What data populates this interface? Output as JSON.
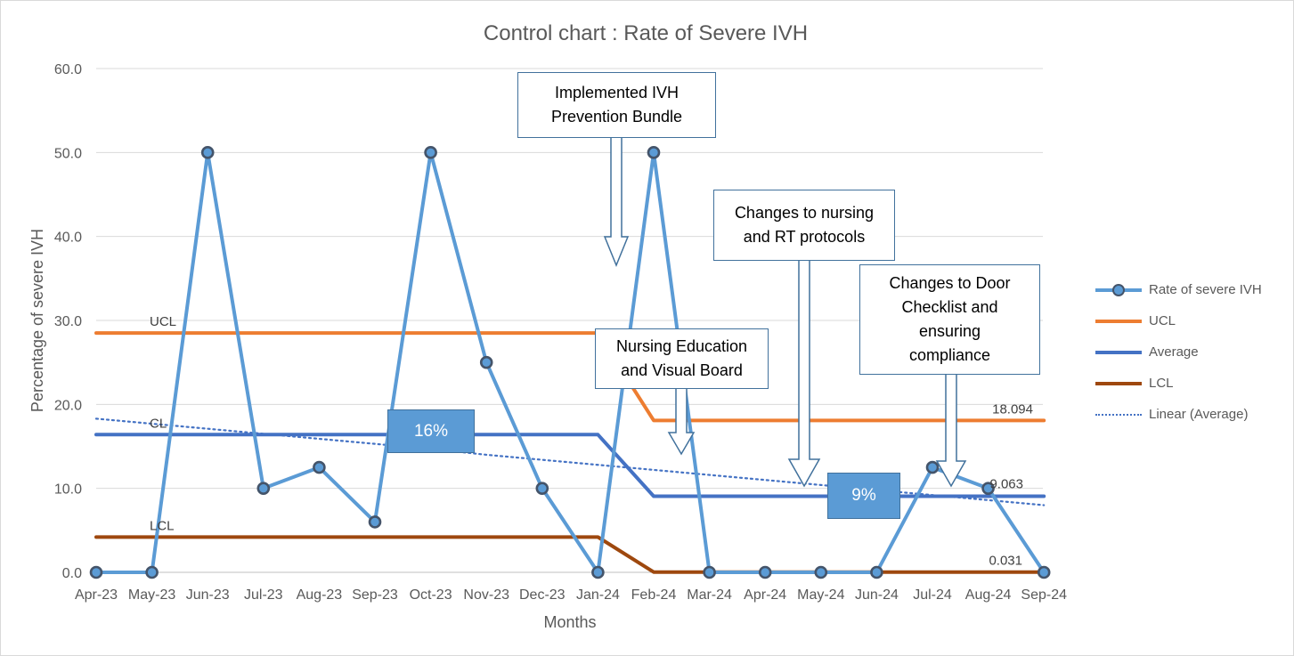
{
  "chart_data": {
    "type": "line",
    "title": "Control chart : Rate of Severe IVH",
    "xlabel": "Months",
    "ylabel": "Percentage of severe  IVH",
    "ylim": [
      0,
      60
    ],
    "yticks": [
      "0.0",
      "10.0",
      "20.0",
      "30.0",
      "40.0",
      "50.0",
      "60.0"
    ],
    "grid": true,
    "legend_position": "right",
    "categories": [
      "Apr-23",
      "May-23",
      "Jun-23",
      "Jul-23",
      "Aug-23",
      "Sep-23",
      "Oct-23",
      "Nov-23",
      "Dec-23",
      "Jan-24",
      "Feb-24",
      "Mar-24",
      "Apr-24",
      "May-24",
      "Jun-24",
      "Jul-24",
      "Aug-24",
      "Sep-24"
    ],
    "series": [
      {
        "name": "Rate of severe IVH",
        "color": "#5b9bd5",
        "values": [
          0,
          0,
          50,
          10,
          12.5,
          6,
          50,
          25,
          10,
          0,
          50,
          0,
          0,
          0,
          0,
          12.5,
          10,
          0
        ]
      },
      {
        "name": "UCL",
        "color": "#ed7d31",
        "values": [
          28.5,
          28.5,
          28.5,
          28.5,
          28.5,
          28.5,
          28.5,
          28.5,
          28.5,
          28.5,
          18.094,
          18.094,
          18.094,
          18.094,
          18.094,
          18.094,
          18.094,
          18.094
        ]
      },
      {
        "name": "Average",
        "color": "#4472c4",
        "values": [
          16.4,
          16.4,
          16.4,
          16.4,
          16.4,
          16.4,
          16.4,
          16.4,
          16.4,
          16.4,
          9.063,
          9.063,
          9.063,
          9.063,
          9.063,
          9.063,
          9.063,
          9.063
        ]
      },
      {
        "name": "LCL",
        "color": "#9e480e",
        "values": [
          4.2,
          4.2,
          4.2,
          4.2,
          4.2,
          4.2,
          4.2,
          4.2,
          4.2,
          4.2,
          0.031,
          0.031,
          0.031,
          0.031,
          0.031,
          0.031,
          0.031,
          0.031
        ]
      },
      {
        "name": "Linear (Average)",
        "color": "#4472c4",
        "values": [
          18.3,
          17.7,
          17.1,
          16.5,
          15.9,
          15.3,
          14.7,
          14.0,
          13.4,
          12.8,
          12.2,
          11.6,
          11.0,
          10.4,
          9.8,
          9.2,
          8.6,
          8.0
        ]
      }
    ],
    "line_labels": {
      "ucl_start": "UCL",
      "cl_start": "CL",
      "lcl_start": "LCL",
      "ucl_end": "18.094",
      "avg_end": "9.063",
      "lcl_end": "0.031"
    },
    "annotations": {
      "callouts": [
        {
          "id": "prevention-bundle",
          "lines": [
            "Implemented IVH",
            "Prevention Bundle"
          ]
        },
        {
          "id": "nursing-education",
          "lines": [
            "Nursing Education",
            "and Visual Board"
          ]
        },
        {
          "id": "nursing-rt",
          "lines": [
            "Changes to nursing",
            "and RT protocols"
          ]
        },
        {
          "id": "door-checklist",
          "lines": [
            "Changes to Door",
            "Checklist and",
            "ensuring",
            "compliance"
          ]
        }
      ],
      "percent_boxes": [
        {
          "id": "before",
          "label": "16%"
        },
        {
          "id": "after",
          "label": "9%"
        }
      ]
    }
  }
}
